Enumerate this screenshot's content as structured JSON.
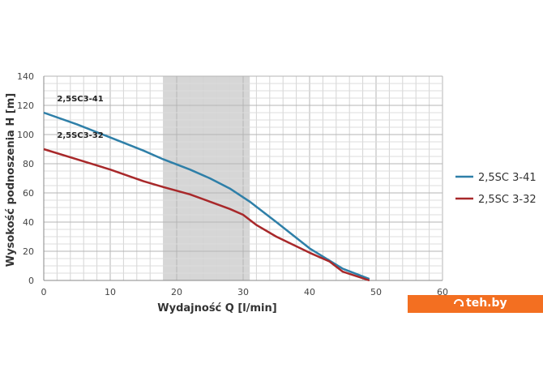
{
  "chart_data": {
    "type": "line",
    "xlabel": "Wydajność Q [l/min]",
    "ylabel": "Wysokość podnoszenia H [m]",
    "xlim": [
      0,
      60
    ],
    "ylim": [
      0,
      140
    ],
    "x_ticks": [
      "0",
      "10",
      "20",
      "30",
      "40",
      "50",
      "60"
    ],
    "y_ticks": [
      "0",
      "20",
      "40",
      "60",
      "80",
      "100",
      "120",
      "140"
    ],
    "grid": true,
    "legend_position": "right",
    "highlight_band": {
      "x_from": 18,
      "x_to": 31,
      "color": "#d6d6d6"
    },
    "series": [
      {
        "name": "2,5SC 3-41",
        "curve_label": "2,5SC3-41",
        "color": "#2e7fa8",
        "x": [
          0,
          5,
          10,
          15,
          18,
          22,
          25,
          28,
          31,
          35,
          40,
          45,
          49
        ],
        "y": [
          115,
          107,
          98,
          89,
          83,
          76,
          70,
          63,
          54,
          40,
          22,
          8,
          1
        ]
      },
      {
        "name": "2,5SC 3-32",
        "curve_label": "2,5SC3-32",
        "color": "#a8282a",
        "x": [
          0,
          5,
          10,
          15,
          18,
          22,
          25,
          28,
          30,
          32,
          35,
          40,
          43,
          45,
          49
        ],
        "y": [
          90,
          83,
          76,
          68,
          64,
          59,
          54,
          49,
          45,
          38,
          30,
          19,
          13,
          6,
          0
        ]
      }
    ]
  },
  "brand": {
    "text": "teh.by"
  }
}
